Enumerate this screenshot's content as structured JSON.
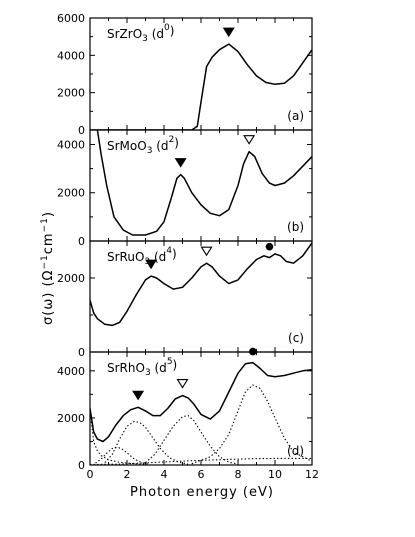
{
  "figure": {
    "xlabel": "Photon energy (eV)",
    "ylabel_main": "σ(ω)",
    "ylabel_units": "(Ω",
    "ylabel_exp1": "−1",
    "ylabel_mid": "cm",
    "ylabel_exp2": "−1",
    "ylabel_close": ")"
  },
  "chart_data": [
    {
      "type": "line",
      "panel_letter": "(a)",
      "material": {
        "base": "SrZrO",
        "sub": "3",
        "config": "d",
        "sup": "0"
      },
      "xlim": [
        0,
        12
      ],
      "ylim": [
        0,
        6000
      ],
      "yticks": [
        "0",
        "2000",
        "4000",
        "6000"
      ],
      "xticks": [],
      "series": [
        {
          "style": "solid",
          "x": [
            0,
            1,
            2,
            3,
            4,
            5,
            5.5,
            5.8,
            6.0,
            6.3,
            6.6,
            7.0,
            7.5,
            8.0,
            8.5,
            9.0,
            9.5,
            10.0,
            10.5,
            11.0,
            11.5,
            12.0
          ],
          "y": [
            0,
            0,
            0,
            0,
            0,
            0,
            0,
            200,
            1500,
            3400,
            3900,
            4300,
            4600,
            4200,
            3500,
            2900,
            2550,
            2450,
            2500,
            2900,
            3600,
            4300
          ]
        }
      ],
      "markers": [
        {
          "type": "filled-triangle",
          "x": 7.5,
          "y": 4600
        }
      ]
    },
    {
      "type": "line",
      "panel_letter": "(b)",
      "material": {
        "base": "SrMoO",
        "sub": "3",
        "config": "d",
        "sup": "2"
      },
      "xlim": [
        0,
        12
      ],
      "ylim": [
        0,
        4600
      ],
      "yticks": [
        "0",
        "2000",
        "4000"
      ],
      "xticks": [],
      "series": [
        {
          "style": "solid",
          "x": [
            0.4,
            0.6,
            0.9,
            1.3,
            1.8,
            2.3,
            3.0,
            3.6,
            4.0,
            4.4,
            4.7,
            4.9,
            5.1,
            5.5,
            6.0,
            6.5,
            7.0,
            7.5,
            8.0,
            8.3,
            8.6,
            8.9,
            9.3,
            9.7,
            10.0,
            10.5,
            11.0,
            11.5,
            12.0
          ],
          "y": [
            4600,
            3600,
            2300,
            1000,
            450,
            250,
            250,
            400,
            800,
            1800,
            2600,
            2750,
            2600,
            2000,
            1500,
            1150,
            1050,
            1300,
            2300,
            3200,
            3700,
            3500,
            2800,
            2400,
            2300,
            2400,
            2700,
            3100,
            3500
          ]
        }
      ],
      "markers": [
        {
          "type": "filled-triangle",
          "x": 4.9,
          "y": 2750
        },
        {
          "type": "open-triangle",
          "x": 8.6,
          "y": 3700
        }
      ]
    },
    {
      "type": "line",
      "panel_letter": "(c)",
      "material": {
        "base": "SrRuO",
        "sub": "3",
        "config": "d",
        "sup": "4"
      },
      "xlim": [
        0,
        12
      ],
      "ylim": [
        0,
        3000
      ],
      "yticks": [
        "0",
        "2000"
      ],
      "xticks": [],
      "series": [
        {
          "style": "solid",
          "x": [
            0,
            0.2,
            0.4,
            0.8,
            1.2,
            1.6,
            2.0,
            2.5,
            3.0,
            3.3,
            3.6,
            4.0,
            4.5,
            5.0,
            5.5,
            6.0,
            6.3,
            6.6,
            7.0,
            7.5,
            8.0,
            8.5,
            9.0,
            9.4,
            9.7,
            10.0,
            10.3,
            10.6,
            11.0,
            11.5,
            12.0
          ],
          "y": [
            1400,
            1050,
            900,
            750,
            720,
            800,
            1100,
            1550,
            1950,
            2050,
            2000,
            1850,
            1700,
            1750,
            2000,
            2300,
            2400,
            2300,
            2050,
            1850,
            1950,
            2250,
            2500,
            2600,
            2550,
            2650,
            2600,
            2450,
            2400,
            2600,
            2950
          ]
        }
      ],
      "markers": [
        {
          "type": "filled-triangle",
          "x": 3.3,
          "y": 2050
        },
        {
          "type": "open-triangle",
          "x": 6.3,
          "y": 2400
        },
        {
          "type": "filled-circle",
          "x": 9.7,
          "y": 2550
        }
      ]
    },
    {
      "type": "line",
      "panel_letter": "(d)",
      "material": {
        "base": "SrRhO",
        "sub": "3",
        "config": "d",
        "sup": "5"
      },
      "xlim": [
        0,
        12
      ],
      "ylim": [
        0,
        4800
      ],
      "yticks": [
        "0",
        "2000",
        "4000"
      ],
      "xticks": [
        "0",
        "2",
        "4",
        "6",
        "8",
        "10",
        "12"
      ],
      "series": [
        {
          "style": "solid",
          "x": [
            0,
            0.2,
            0.4,
            0.7,
            1.0,
            1.4,
            1.8,
            2.2,
            2.6,
            3.0,
            3.4,
            3.8,
            4.2,
            4.6,
            5.0,
            5.3,
            5.6,
            6.0,
            6.5,
            7.0,
            7.5,
            8.0,
            8.4,
            8.8,
            9.2,
            9.6,
            10.0,
            10.5,
            11.0,
            11.5,
            12.0
          ],
          "y": [
            2400,
            1400,
            1100,
            1000,
            1200,
            1700,
            2100,
            2350,
            2450,
            2300,
            2100,
            2100,
            2400,
            2800,
            2950,
            2850,
            2600,
            2150,
            1950,
            2300,
            3100,
            3900,
            4300,
            4350,
            4100,
            3800,
            3750,
            3800,
            3900,
            4000,
            4050
          ]
        },
        {
          "style": "dotted",
          "x": [
            0,
            0.2,
            0.4,
            0.6,
            1.0,
            1.5,
            2.0,
            2.5,
            3.0
          ],
          "y": [
            2300,
            1000,
            600,
            400,
            220,
            130,
            80,
            50,
            30
          ]
        },
        {
          "style": "dotted",
          "x": [
            0.3,
            0.6,
            0.9,
            1.2,
            1.5,
            1.8,
            2.1,
            2.4,
            2.8,
            3.2
          ],
          "y": [
            80,
            250,
            500,
            700,
            750,
            650,
            450,
            250,
            100,
            30
          ]
        },
        {
          "style": "dotted",
          "x": [
            0.8,
            1.2,
            1.6,
            2.0,
            2.4,
            2.7,
            3.0,
            3.4,
            3.8,
            4.3,
            4.8,
            5.3
          ],
          "y": [
            100,
            450,
            1100,
            1650,
            1850,
            1800,
            1600,
            1150,
            700,
            300,
            120,
            40
          ]
        },
        {
          "style": "dotted",
          "x": [
            3.0,
            3.5,
            4.0,
            4.5,
            5.0,
            5.3,
            5.6,
            6.0,
            6.5,
            7.0,
            7.5,
            8.0
          ],
          "y": [
            100,
            450,
            1050,
            1650,
            2050,
            2100,
            1900,
            1400,
            800,
            350,
            120,
            40
          ]
        },
        {
          "style": "dotted",
          "x": [
            5.5,
            6.5,
            7.0,
            7.5,
            8.0,
            8.4,
            8.8,
            9.2,
            9.6,
            10.0,
            10.5,
            11.0,
            12.0
          ],
          "y": [
            50,
            350,
            700,
            1300,
            2300,
            3100,
            3400,
            3250,
            2700,
            2000,
            1150,
            550,
            150
          ]
        },
        {
          "style": "dotted",
          "x": [
            0.0,
            1.5,
            3.0,
            4.5,
            6.0,
            7.5,
            9.0,
            10.5,
            12.0
          ],
          "y": [
            20,
            40,
            90,
            150,
            200,
            240,
            270,
            280,
            280
          ]
        }
      ],
      "markers": [
        {
          "type": "filled-triangle",
          "x": 2.6,
          "y": 2450
        },
        {
          "type": "open-triangle",
          "x": 5.0,
          "y": 2950
        },
        {
          "type": "filled-circle",
          "x": 8.8,
          "y": 4350
        }
      ]
    }
  ]
}
